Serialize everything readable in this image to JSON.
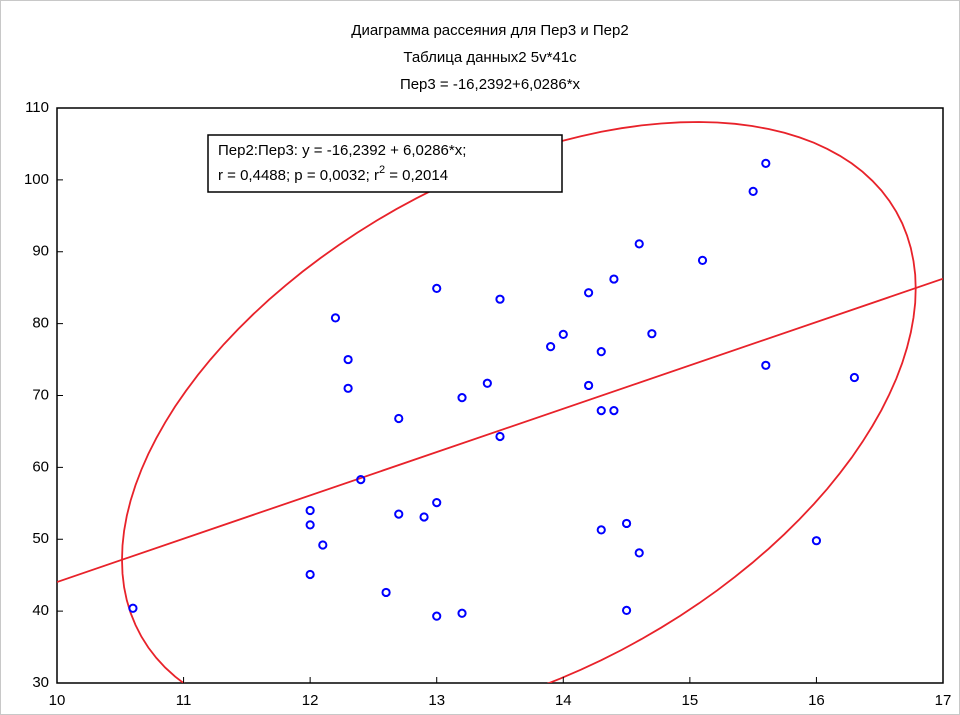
{
  "chart_data": {
    "type": "scatter",
    "title": [
      "Диаграмма рассеяния для Пер3 и Пер2",
      "Таблица данных2 5v*41c",
      "Пер3 = -16,2392+6,0286*x"
    ],
    "legend_text": {
      "line1": "Пер2:Пер3:   y = -16,2392 + 6,0286*x;",
      "line2_start": "r = 0,4488; p = 0,0032; r",
      "line2_sup": "2",
      "line2_end": " = 0,2014"
    },
    "fit": {
      "intercept": -16.2392,
      "slope": 6.0286,
      "color": "#e8222a"
    },
    "ellipse_color": "#e8222a",
    "series": [
      {
        "name": "Пер3",
        "color": "#0000ff",
        "x": [
          10.6,
          12.0,
          12.0,
          12.1,
          12.0,
          12.2,
          12.3,
          12.3,
          12.4,
          12.7,
          12.7,
          12.6,
          12.9,
          13.0,
          13.0,
          13.0,
          13.2,
          13.2,
          13.4,
          13.5,
          13.5,
          13.9,
          14.0,
          14.2,
          14.2,
          14.3,
          14.3,
          14.4,
          14.4,
          14.3,
          14.5,
          14.5,
          14.6,
          14.6,
          14.7,
          15.1,
          15.5,
          15.6,
          15.6,
          16.0,
          16.3
        ],
        "values": [
          40.4,
          54.0,
          52.0,
          49.2,
          45.1,
          80.8,
          75.0,
          71.0,
          58.3,
          66.8,
          53.5,
          42.6,
          53.1,
          55.1,
          84.9,
          39.3,
          39.7,
          69.7,
          71.7,
          83.4,
          64.3,
          76.8,
          78.5,
          84.3,
          71.4,
          76.1,
          67.9,
          67.9,
          86.2,
          51.3,
          52.2,
          40.1,
          91.1,
          48.1,
          78.6,
          88.8,
          98.4,
          102.3,
          74.2,
          49.8,
          72.5
        ]
      }
    ],
    "xlim": [
      10,
      17
    ],
    "xticks": [
      10,
      11,
      12,
      13,
      14,
      15,
      16,
      17
    ],
    "ylim": [
      30,
      110
    ],
    "yticks": [
      30,
      40,
      50,
      60,
      70,
      80,
      90,
      100,
      110
    ],
    "grid": false
  }
}
